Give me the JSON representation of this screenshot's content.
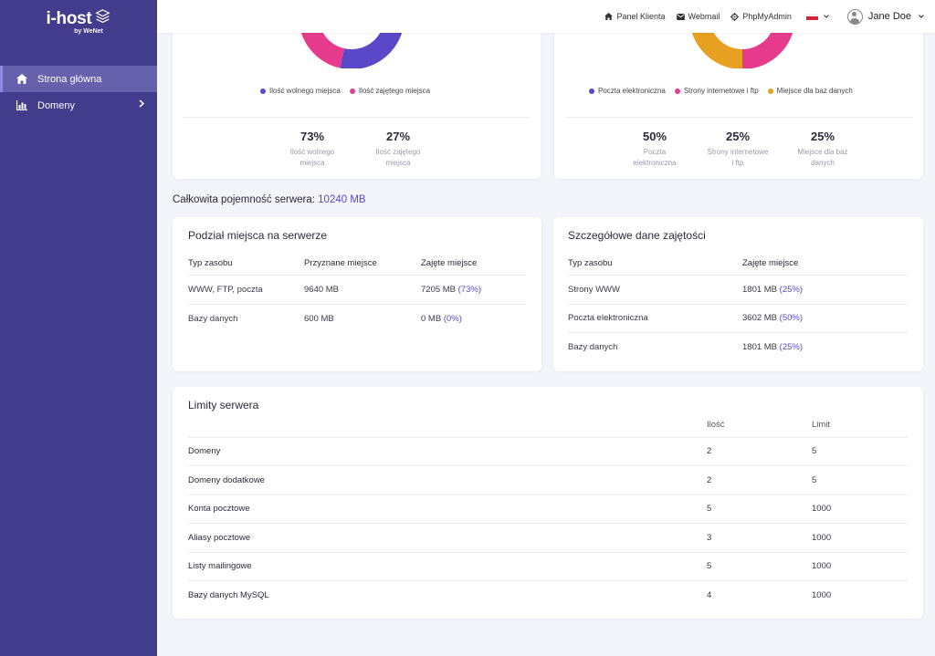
{
  "brand": {
    "name": "i-host",
    "sub": "by WeNet"
  },
  "sidebar": {
    "items": [
      {
        "label": "Strona główna",
        "icon": "home-icon",
        "active": true
      },
      {
        "label": "Domeny",
        "icon": "chart-bar-icon",
        "active": false,
        "has_children": true
      }
    ]
  },
  "topbar": {
    "links": [
      {
        "label": "Panel Klienta",
        "icon": "home-icon"
      },
      {
        "label": "Webmail",
        "icon": "envelope-icon"
      },
      {
        "label": "PhpMyAdmin",
        "icon": "gear-icon"
      }
    ],
    "language": "pl",
    "user": "Jane Doe"
  },
  "colors": {
    "accent": "#5b48c9",
    "sidebar": "#433c8c",
    "pink": "#e63a8c",
    "orange": "#e8a020"
  },
  "usage_card": {
    "chart_data": {
      "type": "pie",
      "series": [
        {
          "name": "Ilość wolnego miejsca",
          "value": 73,
          "color": "#5b48c9"
        },
        {
          "name": "Ilość zajętego miejsca",
          "value": 27,
          "color": "#e63a8c"
        }
      ]
    },
    "stats": [
      {
        "value": "73%",
        "label": "Ilość wolnego miejsca"
      },
      {
        "value": "27%",
        "label": "Ilość zajętego miejsca"
      }
    ]
  },
  "types_card": {
    "chart_data": {
      "type": "pie",
      "series": [
        {
          "name": "Poczta elektroniczna",
          "value": 50,
          "color": "#5b48c9"
        },
        {
          "name": "Strony internetowe i ftp",
          "value": 25,
          "color": "#e63a8c"
        },
        {
          "name": "Miejsce dla baz danych",
          "value": 25,
          "color": "#e8a020"
        }
      ]
    },
    "stats": [
      {
        "value": "50%",
        "label": "Poczta elektroniczna"
      },
      {
        "value": "25%",
        "label": "Strony internetowe i ftp"
      },
      {
        "value": "25%",
        "label": "Miejsce dla baz danych"
      }
    ]
  },
  "total": {
    "label": "Całkowita pojemność serwera:",
    "value": "10240 MB"
  },
  "allocation": {
    "title": "Podział miejsca na serwerze",
    "headers": [
      "Typ zasobu",
      "Przyznane miejsce",
      "Zajęte miejsce"
    ],
    "rows": [
      {
        "type": "WWW, FTP, poczta",
        "assigned": "9640 MB",
        "used": "7205 MB",
        "pct": "(73%)"
      },
      {
        "type": "Bazy danych",
        "assigned": "600 MB",
        "used": "0 MB",
        "pct": "(0%)"
      }
    ]
  },
  "details": {
    "title": "Szczegółowe dane zajętości",
    "headers": [
      "Typ zasobu",
      "Zajęte miejsce"
    ],
    "rows": [
      {
        "type": "Strony WWW",
        "used": "1801 MB",
        "pct": "(25%)"
      },
      {
        "type": "Poczta elektroniczna",
        "used": "3602 MB",
        "pct": "(50%)"
      },
      {
        "type": "Bazy danych",
        "used": "1801 MB",
        "pct": "(25%)"
      }
    ]
  },
  "limits": {
    "title": "Limity serwera",
    "headers": [
      "",
      "Ilość",
      "Limit"
    ],
    "rows": [
      {
        "name": "Domeny",
        "count": "2",
        "limit": "5"
      },
      {
        "name": "Domeny dodatkowe",
        "count": "2",
        "limit": "5"
      },
      {
        "name": "Konta pocztowe",
        "count": "5",
        "limit": "1000"
      },
      {
        "name": "Aliasy pocztowe",
        "count": "3",
        "limit": "1000"
      },
      {
        "name": "Listy mailingowe",
        "count": "5",
        "limit": "1000"
      },
      {
        "name": "Bazy danych MySQL",
        "count": "4",
        "limit": "1000"
      }
    ]
  }
}
